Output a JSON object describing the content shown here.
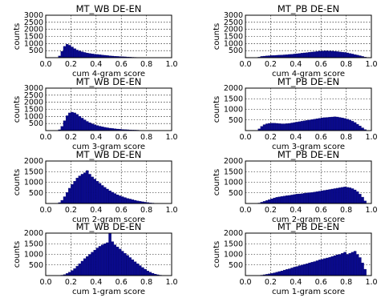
{
  "chart_data": [
    {
      "type": "bar",
      "title": "MT_WB DE-EN",
      "xlabel": "cum 4-gram score",
      "ylabel": "counts",
      "xlim": [
        0,
        1
      ],
      "ylim": [
        0,
        3000
      ],
      "yticks": [
        500,
        1000,
        1500,
        2000,
        2500,
        3000
      ],
      "xticks": [
        "0.0",
        "0.2",
        "0.4",
        "0.6",
        "0.8",
        "1.0"
      ],
      "grid": true,
      "color": "#0a0a8c",
      "x": [
        0.11,
        0.13,
        0.15,
        0.17,
        0.19,
        0.21,
        0.23,
        0.25,
        0.27,
        0.29,
        0.31,
        0.33,
        0.35,
        0.37,
        0.39,
        0.41,
        0.43,
        0.45,
        0.47,
        0.49,
        0.51,
        0.53,
        0.55,
        0.57,
        0.59,
        0.61,
        0.63,
        0.65,
        0.67,
        0.69,
        0.71,
        0.73,
        0.75,
        0.77,
        0.79
      ],
      "values": [
        120,
        450,
        800,
        950,
        880,
        760,
        640,
        540,
        470,
        420,
        370,
        330,
        300,
        270,
        250,
        230,
        210,
        190,
        170,
        150,
        130,
        115,
        100,
        90,
        80,
        70,
        60,
        50,
        40,
        30,
        25,
        20,
        15,
        10,
        5
      ]
    },
    {
      "type": "bar",
      "title": "MT_PB DE-EN",
      "xlabel": "cum 4-gram score",
      "ylabel": "counts",
      "xlim": [
        0,
        1
      ],
      "ylim": [
        0,
        3000
      ],
      "yticks": [
        500,
        1000,
        1500,
        2000,
        2500,
        3000
      ],
      "xticks": [
        "0.0",
        "0.2",
        "0.4",
        "0.6",
        "0.8",
        "1.0"
      ],
      "grid": true,
      "color": "#0a0a8c",
      "x": [
        0.11,
        0.13,
        0.15,
        0.17,
        0.19,
        0.21,
        0.23,
        0.25,
        0.27,
        0.29,
        0.31,
        0.33,
        0.35,
        0.37,
        0.39,
        0.41,
        0.43,
        0.45,
        0.47,
        0.49,
        0.51,
        0.53,
        0.55,
        0.57,
        0.59,
        0.61,
        0.63,
        0.65,
        0.67,
        0.69,
        0.71,
        0.73,
        0.75,
        0.77,
        0.79,
        0.81,
        0.83,
        0.85,
        0.87,
        0.89,
        0.91,
        0.93,
        0.95
      ],
      "values": [
        40,
        90,
        110,
        130,
        140,
        150,
        160,
        170,
        180,
        190,
        200,
        210,
        230,
        240,
        260,
        280,
        300,
        320,
        340,
        360,
        380,
        400,
        420,
        440,
        460,
        470,
        480,
        480,
        470,
        460,
        450,
        430,
        410,
        390,
        370,
        340,
        300,
        260,
        220,
        180,
        140,
        90,
        40
      ]
    },
    {
      "type": "bar",
      "title": "MT_WB DE-EN",
      "xlabel": "cum 3-gram score",
      "ylabel": "counts",
      "xlim": [
        0,
        1
      ],
      "ylim": [
        0,
        3000
      ],
      "yticks": [
        500,
        1000,
        1500,
        2000,
        2500,
        3000
      ],
      "xticks": [
        "0.0",
        "0.2",
        "0.4",
        "0.6",
        "0.8",
        "1.0"
      ],
      "grid": true,
      "color": "#0a0a8c",
      "x": [
        0.11,
        0.13,
        0.15,
        0.17,
        0.19,
        0.21,
        0.23,
        0.25,
        0.27,
        0.29,
        0.31,
        0.33,
        0.35,
        0.37,
        0.39,
        0.41,
        0.43,
        0.45,
        0.47,
        0.49,
        0.51,
        0.53,
        0.55,
        0.57,
        0.59,
        0.61,
        0.63,
        0.65,
        0.67,
        0.69,
        0.71,
        0.73,
        0.75,
        0.77,
        0.79,
        0.81
      ],
      "values": [
        60,
        300,
        700,
        1050,
        1250,
        1300,
        1250,
        1150,
        1000,
        880,
        760,
        650,
        560,
        480,
        420,
        360,
        310,
        270,
        230,
        200,
        170,
        150,
        130,
        110,
        95,
        80,
        70,
        60,
        50,
        40,
        35,
        30,
        20,
        15,
        10,
        5
      ]
    },
    {
      "type": "bar",
      "title": "MT_PB DE-EN",
      "xlabel": "cum 3-gram score",
      "ylabel": "counts",
      "xlim": [
        0,
        1
      ],
      "ylim": [
        0,
        2000
      ],
      "yticks": [
        500,
        1000,
        1500,
        2000
      ],
      "xticks": [
        "0.0",
        "0.2",
        "0.4",
        "0.6",
        "0.8",
        "1.0"
      ],
      "grid": true,
      "color": "#0a0a8c",
      "x": [
        0.11,
        0.13,
        0.15,
        0.17,
        0.19,
        0.21,
        0.23,
        0.25,
        0.27,
        0.29,
        0.31,
        0.33,
        0.35,
        0.37,
        0.39,
        0.41,
        0.43,
        0.45,
        0.47,
        0.49,
        0.51,
        0.53,
        0.55,
        0.57,
        0.59,
        0.61,
        0.63,
        0.65,
        0.67,
        0.69,
        0.71,
        0.73,
        0.75,
        0.77,
        0.79,
        0.81,
        0.83,
        0.85,
        0.87,
        0.89,
        0.91,
        0.93,
        0.95
      ],
      "values": [
        80,
        200,
        280,
        320,
        340,
        350,
        350,
        340,
        330,
        320,
        320,
        330,
        340,
        360,
        380,
        400,
        420,
        440,
        460,
        480,
        500,
        520,
        540,
        560,
        580,
        600,
        610,
        620,
        630,
        640,
        650,
        640,
        620,
        600,
        570,
        540,
        500,
        440,
        380,
        300,
        220,
        130,
        50
      ]
    },
    {
      "type": "bar",
      "title": "MT_WB DE-EN",
      "xlabel": "cum 2-gram score",
      "ylabel": "counts",
      "xlim": [
        0,
        1
      ],
      "ylim": [
        0,
        2000
      ],
      "yticks": [
        500,
        1000,
        1500,
        2000
      ],
      "xticks": [
        "0.0",
        "0.2",
        "0.4",
        "0.6",
        "0.8",
        "1.0"
      ],
      "grid": true,
      "color": "#0a0a8c",
      "x": [
        0.11,
        0.13,
        0.15,
        0.17,
        0.19,
        0.21,
        0.23,
        0.25,
        0.27,
        0.29,
        0.31,
        0.33,
        0.35,
        0.37,
        0.39,
        0.41,
        0.43,
        0.45,
        0.47,
        0.49,
        0.51,
        0.53,
        0.55,
        0.57,
        0.59,
        0.61,
        0.63,
        0.65,
        0.67,
        0.69,
        0.71,
        0.73,
        0.75,
        0.77,
        0.79,
        0.81,
        0.83,
        0.85,
        0.87
      ],
      "values": [
        40,
        150,
        320,
        520,
        720,
        900,
        1050,
        1200,
        1300,
        1380,
        1450,
        1550,
        1380,
        1250,
        1150,
        1050,
        950,
        850,
        760,
        680,
        600,
        530,
        470,
        410,
        360,
        320,
        280,
        240,
        210,
        180,
        150,
        120,
        100,
        80,
        60,
        45,
        30,
        20,
        10
      ]
    },
    {
      "type": "bar",
      "title": "MT_PB DE-EN",
      "xlabel": "cum 2-gram score",
      "ylabel": "counts",
      "xlim": [
        0,
        1
      ],
      "ylim": [
        0,
        2000
      ],
      "yticks": [
        500,
        1000,
        1500,
        2000
      ],
      "xticks": [
        "0.0",
        "0.2",
        "0.4",
        "0.6",
        "0.8",
        "1.0"
      ],
      "grid": true,
      "color": "#0a0a8c",
      "x": [
        0.11,
        0.13,
        0.15,
        0.17,
        0.19,
        0.21,
        0.23,
        0.25,
        0.27,
        0.29,
        0.31,
        0.33,
        0.35,
        0.37,
        0.39,
        0.41,
        0.43,
        0.45,
        0.47,
        0.49,
        0.51,
        0.53,
        0.55,
        0.57,
        0.59,
        0.61,
        0.63,
        0.65,
        0.67,
        0.69,
        0.71,
        0.73,
        0.75,
        0.77,
        0.79,
        0.81,
        0.83,
        0.85,
        0.87,
        0.89,
        0.91,
        0.93,
        0.95
      ],
      "values": [
        20,
        60,
        100,
        140,
        180,
        220,
        260,
        290,
        310,
        330,
        350,
        370,
        380,
        400,
        420,
        440,
        450,
        460,
        480,
        500,
        510,
        520,
        540,
        560,
        580,
        600,
        620,
        640,
        660,
        680,
        700,
        720,
        740,
        760,
        780,
        760,
        740,
        700,
        640,
        560,
        440,
        300,
        120
      ]
    },
    {
      "type": "bar",
      "title": "MT_WB DE-EN",
      "xlabel": "cum 1-gram score",
      "ylabel": "counts",
      "xlim": [
        0,
        1
      ],
      "ylim": [
        0,
        2000
      ],
      "yticks": [
        500,
        1000,
        1500,
        2000
      ],
      "xticks": [
        "0.0",
        "0.2",
        "0.4",
        "0.6",
        "0.8",
        "1.0"
      ],
      "grid": true,
      "color": "#0a0a8c",
      "x": [
        0.13,
        0.15,
        0.17,
        0.19,
        0.21,
        0.23,
        0.25,
        0.27,
        0.29,
        0.31,
        0.33,
        0.35,
        0.37,
        0.39,
        0.41,
        0.43,
        0.45,
        0.47,
        0.49,
        0.51,
        0.53,
        0.55,
        0.57,
        0.59,
        0.61,
        0.63,
        0.65,
        0.67,
        0.69,
        0.71,
        0.73,
        0.75,
        0.77,
        0.79,
        0.81,
        0.83,
        0.85,
        0.87,
        0.89,
        0.91
      ],
      "values": [
        20,
        50,
        100,
        160,
        240,
        330,
        440,
        560,
        680,
        800,
        900,
        1000,
        1100,
        1200,
        1300,
        1380,
        1450,
        1500,
        1550,
        2000,
        1600,
        1450,
        1350,
        1250,
        1150,
        1050,
        950,
        850,
        750,
        650,
        560,
        470,
        380,
        300,
        220,
        160,
        110,
        70,
        40,
        20
      ]
    },
    {
      "type": "bar",
      "title": "MT_PB DE-EN",
      "xlabel": "cum 1-gram score",
      "ylabel": "counts",
      "xlim": [
        0,
        1
      ],
      "ylim": [
        0,
        2000
      ],
      "yticks": [
        500,
        1000,
        1500,
        2000
      ],
      "xticks": [
        "0.0",
        "0.2",
        "0.4",
        "0.6",
        "0.8",
        "1.0"
      ],
      "grid": true,
      "color": "#0a0a8c",
      "x": [
        0.13,
        0.15,
        0.17,
        0.19,
        0.21,
        0.23,
        0.25,
        0.27,
        0.29,
        0.31,
        0.33,
        0.35,
        0.37,
        0.39,
        0.41,
        0.43,
        0.45,
        0.47,
        0.49,
        0.51,
        0.53,
        0.55,
        0.57,
        0.59,
        0.61,
        0.63,
        0.65,
        0.67,
        0.69,
        0.71,
        0.73,
        0.75,
        0.77,
        0.79,
        0.81,
        0.83,
        0.85,
        0.87,
        0.89,
        0.91,
        0.93,
        0.95
      ],
      "values": [
        20,
        40,
        60,
        80,
        100,
        130,
        160,
        190,
        220,
        260,
        290,
        320,
        360,
        400,
        430,
        470,
        500,
        530,
        560,
        600,
        630,
        660,
        700,
        740,
        770,
        800,
        830,
        860,
        900,
        940,
        980,
        1000,
        1050,
        1100,
        1000,
        1050,
        1100,
        1150,
        1000,
        850,
        600,
        300
      ]
    }
  ]
}
